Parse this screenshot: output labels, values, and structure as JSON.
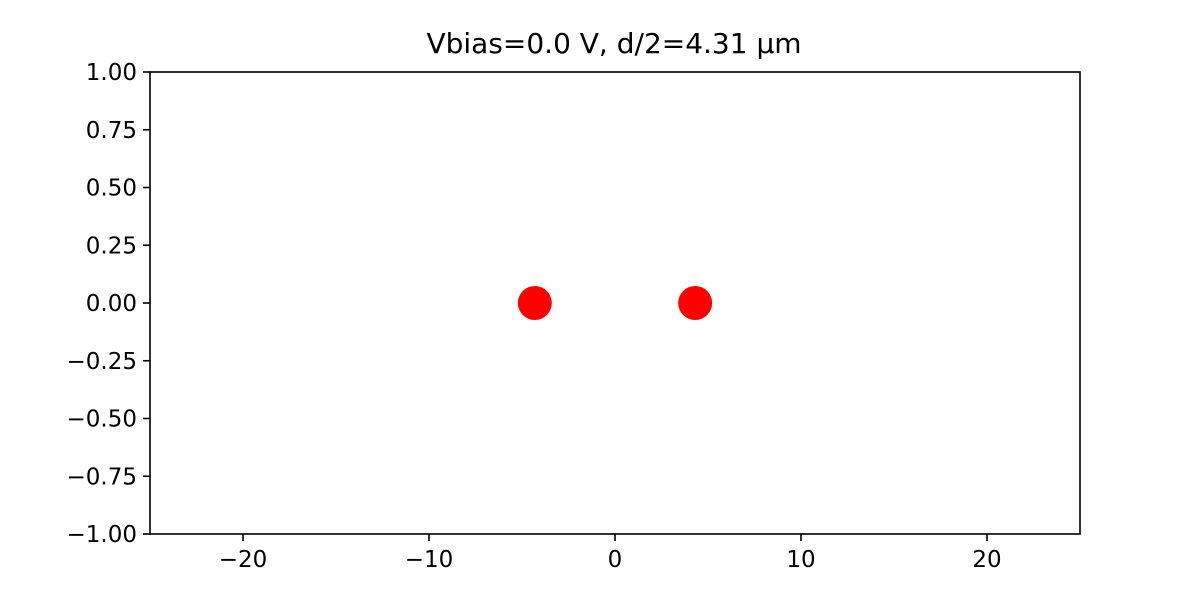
{
  "chart_data": {
    "type": "scatter",
    "title": "Vbias=0.0 V, d/2=4.31 µm",
    "xlabel": "",
    "ylabel": "",
    "xlim": [
      -25,
      25
    ],
    "ylim": [
      -1,
      1
    ],
    "grid": false,
    "x_ticks": [
      -20,
      -10,
      0,
      10,
      20
    ],
    "x_tick_labels": [
      "−20",
      "−10",
      "0",
      "10",
      "20"
    ],
    "y_ticks": [
      1.0,
      0.75,
      0.5,
      0.25,
      0.0,
      -0.25,
      -0.5,
      -0.75,
      -1.0
    ],
    "y_tick_labels": [
      "1.00",
      "0.75",
      "0.50",
      "0.25",
      "0.00",
      "−0.25",
      "−0.50",
      "−0.75",
      "−1.00"
    ],
    "series": [
      {
        "color": "#ff0000",
        "points": [
          {
            "x": -4.31,
            "y": 0.0
          },
          {
            "x": 4.31,
            "y": 0.0
          }
        ]
      }
    ]
  }
}
